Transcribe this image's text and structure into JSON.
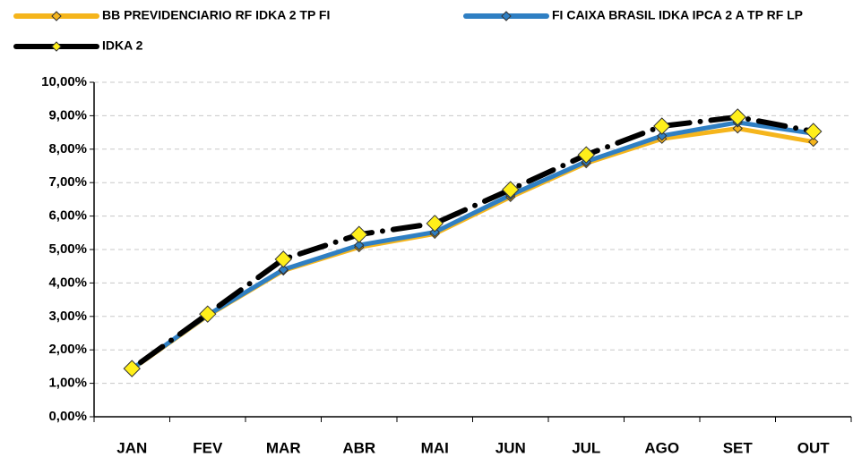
{
  "chart_data": {
    "type": "line",
    "categories": [
      "JAN",
      "FEV",
      "MAR",
      "ABR",
      "MAI",
      "JUN",
      "JUL",
      "AGO",
      "SET",
      "OUT"
    ],
    "series": [
      {
        "name": "BB PREVIDENCIARIO RF IDKA 2 TP FI",
        "color": "#f5b51c",
        "marker_color": "#f5b51c",
        "values": [
          1.42,
          3.02,
          4.37,
          5.07,
          5.47,
          6.57,
          7.58,
          8.31,
          8.62,
          8.22
        ]
      },
      {
        "name": "FI CAIXA BRASIL IDKA IPCA 2 A TP RF LP",
        "color": "#2f7fc3",
        "marker_color": "#2f7fc3",
        "values": [
          1.43,
          3.04,
          4.4,
          5.13,
          5.52,
          6.63,
          7.63,
          8.4,
          8.8,
          8.47
        ]
      },
      {
        "name": "IDKA 2",
        "color": "#000000",
        "marker_color": "#ffef1a",
        "dashed": true,
        "values": [
          1.44,
          3.07,
          4.71,
          5.45,
          5.78,
          6.79,
          7.83,
          8.69,
          8.96,
          8.53
        ]
      }
    ],
    "ylim": [
      0,
      10
    ],
    "yticks": [
      {
        "value": 0,
        "label": "0,00%"
      },
      {
        "value": 1,
        "label": "1,00%"
      },
      {
        "value": 2,
        "label": "2,00%"
      },
      {
        "value": 3,
        "label": "3,00%"
      },
      {
        "value": 4,
        "label": "4,00%"
      },
      {
        "value": 5,
        "label": "5,00%"
      },
      {
        "value": 6,
        "label": "6,00%"
      },
      {
        "value": 7,
        "label": "7,00%"
      },
      {
        "value": 8,
        "label": "8,00%"
      },
      {
        "value": 9,
        "label": "9,00%"
      },
      {
        "value": 10,
        "label": "10,00%"
      }
    ],
    "grid": true
  }
}
